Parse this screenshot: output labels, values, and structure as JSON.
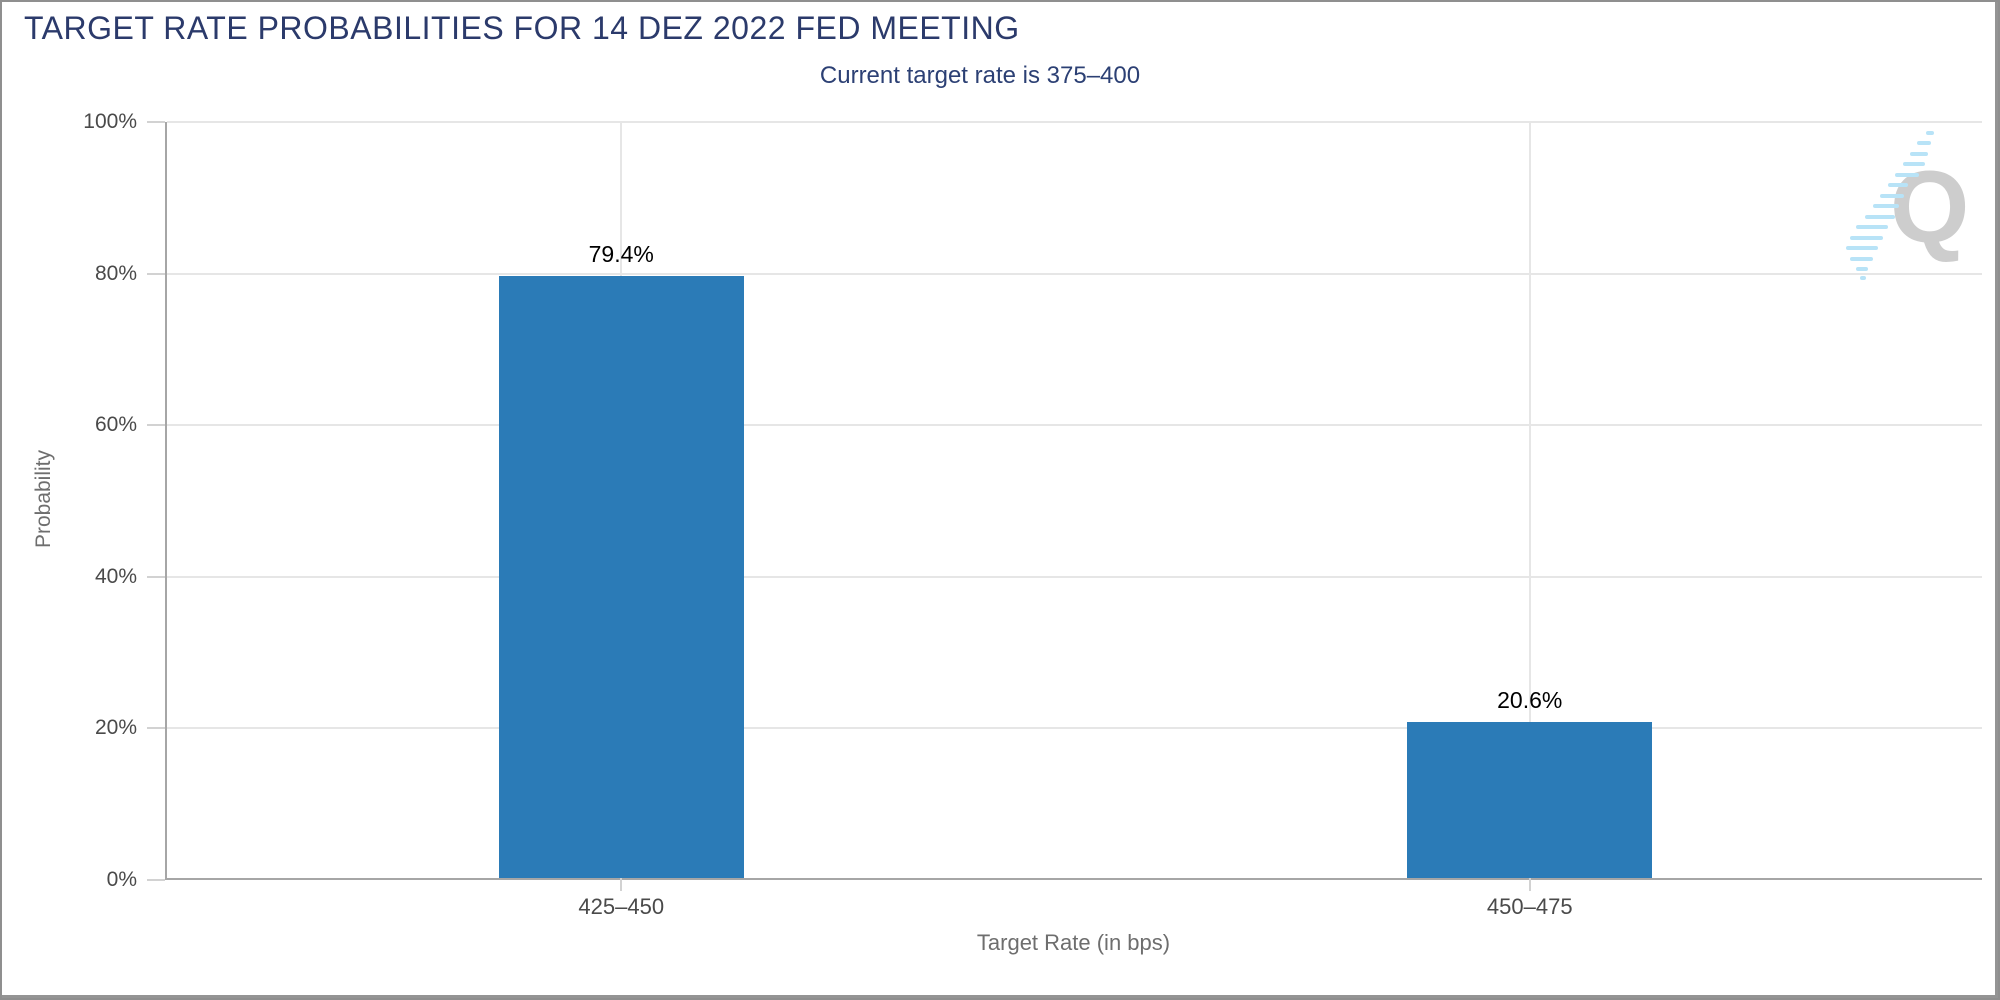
{
  "chart_data": {
    "type": "bar",
    "title": "TARGET RATE PROBABILITIES FOR 14 DEZ 2022 FED MEETING",
    "subtitle": "Current target rate is 375–400",
    "xlabel": "Target Rate (in bps)",
    "ylabel": "Probability",
    "categories": [
      "425–450",
      "450–475"
    ],
    "values": [
      79.4,
      20.6
    ],
    "value_labels": [
      "79.4%",
      "20.6%"
    ],
    "ylim": [
      0,
      100
    ],
    "yticks": [
      0,
      20,
      40,
      60,
      80,
      100
    ],
    "ytick_labels": [
      "0%",
      "20%",
      "40%",
      "60%",
      "80%",
      "100%"
    ],
    "grid": true,
    "legend": "none",
    "bar_color": "#2b7bb7",
    "watermark_letter": "Q"
  },
  "colors": {
    "title": "#2b3a6b",
    "subtitle": "#2c4074",
    "bar": "#2b7bb7",
    "grid_line": "#e6e6e6",
    "axis_line": "#a6a6a6",
    "tick_mark": "#d2d2d2",
    "tick_label": "#4a4a4a",
    "axis_title": "#6e6e6e",
    "value_label": "#000000",
    "watermark_gray": "#cbcbcb",
    "watermark_blue": "#b5e2f7"
  }
}
